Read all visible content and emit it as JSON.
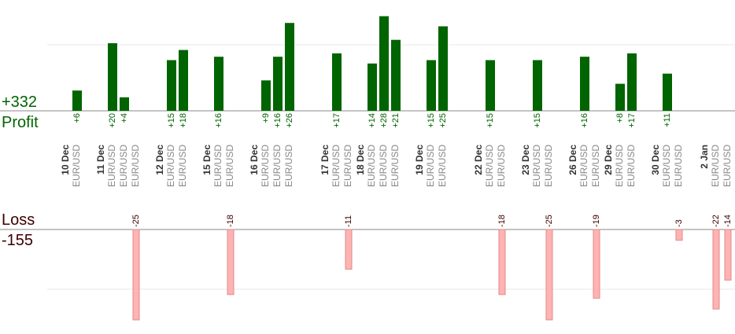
{
  "summary": {
    "profit_total": "+332",
    "profit_label": "Profit",
    "loss_label": "Loss",
    "loss_total": "-155"
  },
  "chart_data": {
    "type": "bar",
    "currency_pair": "EUR/USD",
    "colors": {
      "profit": "#006400",
      "loss": "#ffb3b3",
      "loss_stroke": "#e08a8a",
      "date": "#333333",
      "pair": "#888888"
    },
    "profit_scale_max": 30,
    "loss_scale_max": 25,
    "days": [
      {
        "date": "10 Dec",
        "trades": [
          6
        ]
      },
      {
        "date": "11 Dec",
        "trades": [
          20,
          4,
          -25
        ]
      },
      {
        "date": "12 Dec",
        "trades": [
          15,
          18
        ]
      },
      {
        "date": "15 Dec",
        "trades": [
          16,
          -18
        ]
      },
      {
        "date": "16 Dec",
        "trades": [
          9,
          16,
          26
        ]
      },
      {
        "date": "17 Dec",
        "trades": [
          17,
          -11
        ]
      },
      {
        "date": "18 Dec",
        "trades": [
          14,
          28,
          21
        ]
      },
      {
        "date": "19 Dec",
        "trades": [
          15,
          25
        ]
      },
      {
        "date": "22 Dec",
        "trades": [
          15,
          -18
        ]
      },
      {
        "date": "23 Dec",
        "trades": [
          15,
          -25
        ]
      },
      {
        "date": "26 Dec",
        "trades": [
          16,
          -19
        ]
      },
      {
        "date": "29 Dec",
        "trades": [
          8,
          17
        ]
      },
      {
        "date": "30 Dec",
        "trades": [
          11,
          -3
        ]
      },
      {
        "date": "2 Jan",
        "trades": [
          -22,
          -14
        ]
      }
    ]
  }
}
